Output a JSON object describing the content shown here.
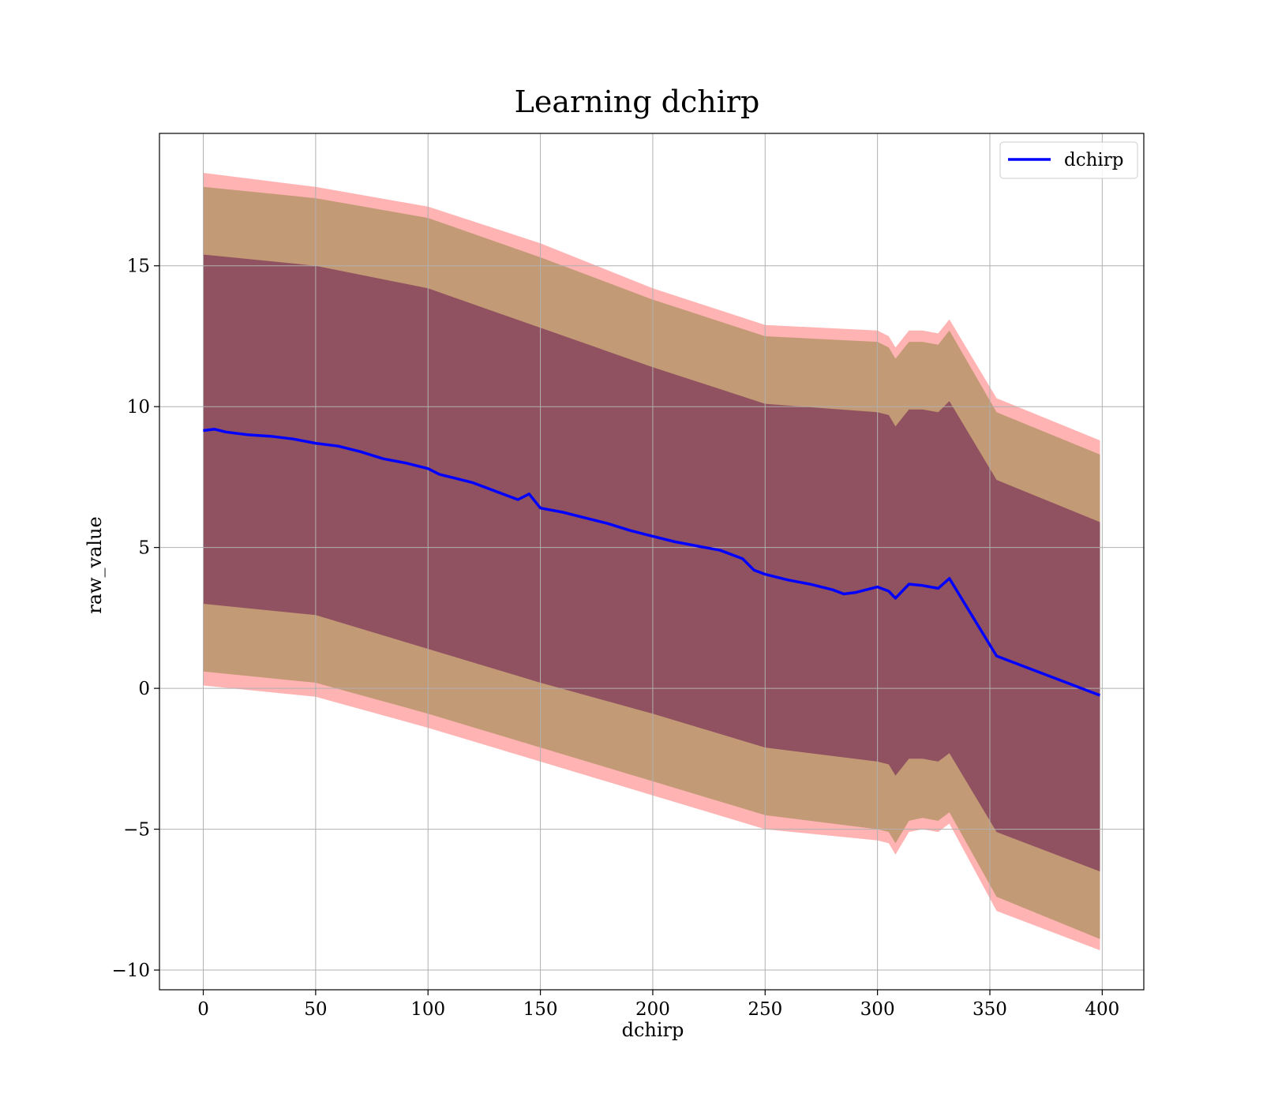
{
  "chart_data": {
    "type": "line",
    "title": "Learning dchirp",
    "xlabel": "dchirp",
    "ylabel": "raw_value",
    "xlim": [
      -19.5,
      418.5
    ],
    "ylim": [
      -10.7,
      19.7
    ],
    "xticks": [
      0,
      50,
      100,
      150,
      200,
      250,
      300,
      350,
      400
    ],
    "yticks": [
      -10,
      -5,
      0,
      5,
      10,
      15
    ],
    "ytick_labels": [
      "−10",
      "−5",
      "0",
      "5",
      "10",
      "15"
    ],
    "grid": true,
    "legend": {
      "placement": "top-right",
      "entries": [
        "dchirp"
      ]
    },
    "colors": {
      "line": "#0000ff",
      "band_outer": "#ff9999",
      "band_mid": "#b8956b",
      "band_inner": "#8b4a5e"
    },
    "series": [
      {
        "name": "dchirp",
        "x": [
          0,
          5,
          10,
          20,
          30,
          40,
          50,
          60,
          70,
          80,
          90,
          100,
          105,
          110,
          120,
          130,
          140,
          145,
          150,
          160,
          170,
          180,
          190,
          200,
          210,
          220,
          230,
          240,
          245,
          250,
          260,
          270,
          280,
          285,
          290,
          300,
          305,
          308,
          314,
          320,
          327,
          332,
          353,
          399
        ],
        "y": [
          9.15,
          9.2,
          9.1,
          9.0,
          8.95,
          8.85,
          8.7,
          8.6,
          8.4,
          8.15,
          8.0,
          7.8,
          7.6,
          7.5,
          7.3,
          7.0,
          6.7,
          6.9,
          6.4,
          6.25,
          6.05,
          5.85,
          5.6,
          5.4,
          5.2,
          5.05,
          4.9,
          4.6,
          4.2,
          4.05,
          3.85,
          3.7,
          3.5,
          3.35,
          3.4,
          3.6,
          3.45,
          3.2,
          3.7,
          3.65,
          3.55,
          3.9,
          1.15,
          -0.25
        ]
      }
    ],
    "bands": [
      {
        "x": [
          0,
          50,
          100,
          150,
          200,
          250,
          300,
          305,
          308,
          314,
          320,
          327,
          332,
          353,
          399
        ],
        "upper": [
          18.3,
          17.8,
          17.1,
          15.8,
          14.2,
          12.9,
          12.7,
          12.5,
          12.1,
          12.7,
          12.7,
          12.6,
          13.1,
          10.3,
          8.8
        ],
        "lower": [
          0.1,
          -0.3,
          -1.4,
          -2.6,
          -3.8,
          -5.0,
          -5.4,
          -5.5,
          -5.9,
          -5.1,
          -5.0,
          -5.1,
          -4.8,
          -7.9,
          -9.3
        ]
      },
      {
        "x": [
          0,
          50,
          100,
          150,
          200,
          250,
          300,
          305,
          308,
          314,
          320,
          327,
          332,
          353,
          399
        ],
        "upper": [
          17.8,
          17.4,
          16.7,
          15.3,
          13.8,
          12.5,
          12.3,
          12.1,
          11.7,
          12.3,
          12.3,
          12.2,
          12.7,
          9.8,
          8.3
        ],
        "lower": [
          0.6,
          0.2,
          -0.9,
          -2.1,
          -3.3,
          -4.5,
          -5.0,
          -5.1,
          -5.5,
          -4.7,
          -4.6,
          -4.7,
          -4.4,
          -7.4,
          -8.9
        ]
      },
      {
        "x": [
          0,
          50,
          100,
          150,
          200,
          250,
          300,
          305,
          308,
          314,
          320,
          327,
          332,
          353,
          399
        ],
        "upper": [
          15.4,
          15.0,
          14.2,
          12.8,
          11.4,
          10.1,
          9.8,
          9.7,
          9.3,
          9.9,
          9.9,
          9.8,
          10.2,
          7.4,
          5.9
        ],
        "lower": [
          3.0,
          2.6,
          1.4,
          0.2,
          -0.9,
          -2.1,
          -2.6,
          -2.7,
          -3.1,
          -2.5,
          -2.5,
          -2.6,
          -2.3,
          -5.1,
          -6.5
        ]
      }
    ]
  }
}
